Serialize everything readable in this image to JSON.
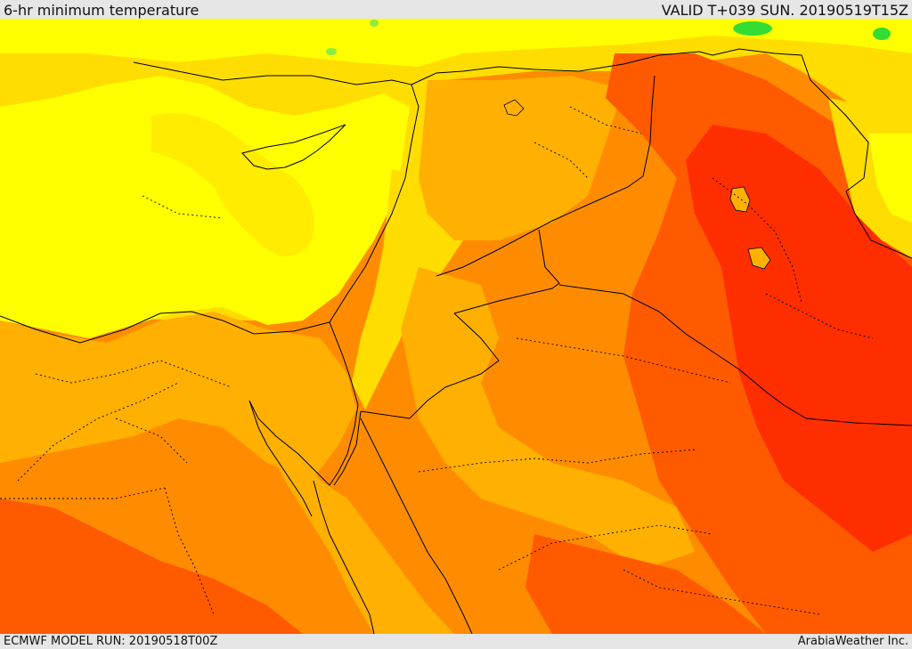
{
  "header": {
    "title": "6-hr minimum temperature",
    "valid": "VALID T+039 SUN. 20190519T15Z"
  },
  "footer": {
    "model_run": "ECMWF MODEL RUN: 20190518T00Z",
    "credit": "ArabiaWeather Inc."
  },
  "colors": {
    "yellow": "#ffff00",
    "gold": "#ffdd00",
    "amber": "#ffb000",
    "orange": "#ff8c00",
    "red_orange": "#ff5a00",
    "red": "#ff2e00",
    "green": "#33dd33"
  }
}
